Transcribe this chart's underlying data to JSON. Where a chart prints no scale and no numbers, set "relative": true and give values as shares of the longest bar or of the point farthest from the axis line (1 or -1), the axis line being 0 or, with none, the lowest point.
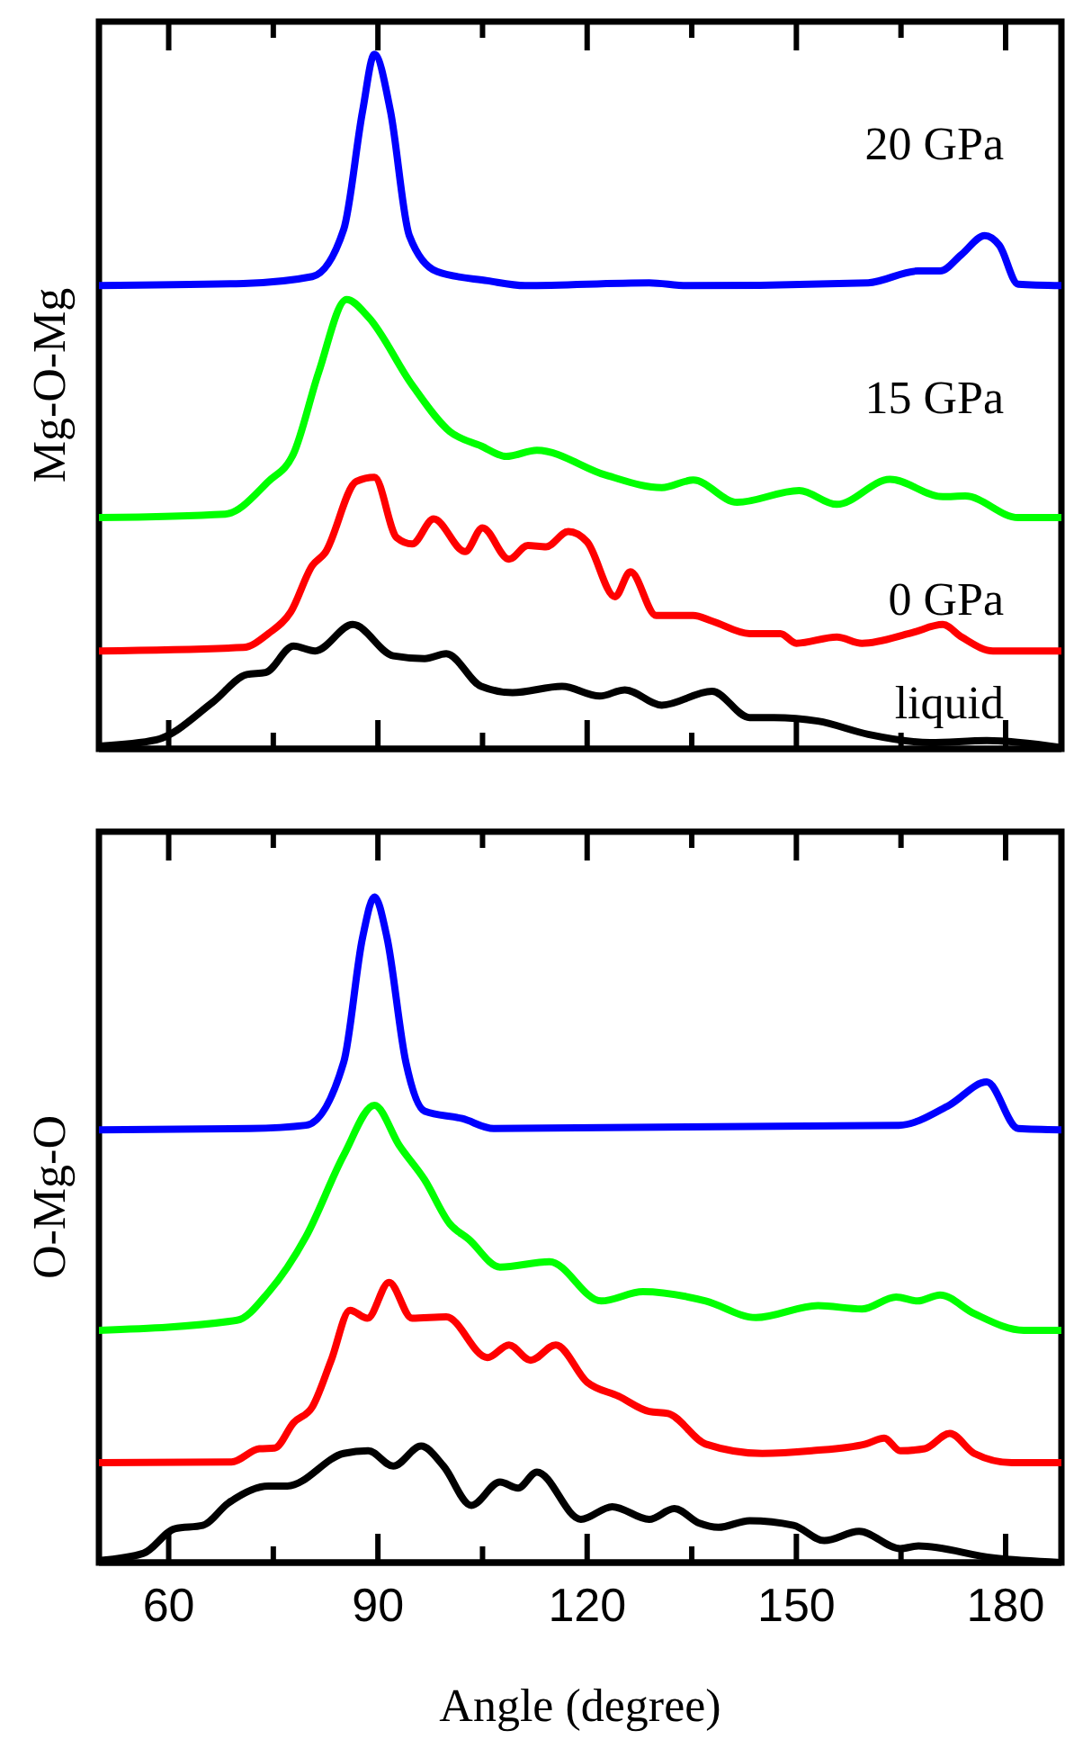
{
  "chart_data": [
    {
      "type": "line",
      "relative": true,
      "ylabel": "Mg-O-Mg",
      "xlim": [
        50,
        188
      ],
      "xticks": [
        60,
        {
          "value": 75,
          "label": null
        },
        90,
        {
          "value": 105,
          "label": null
        },
        120,
        {
          "value": 135,
          "label": null
        },
        150,
        {
          "value": 165,
          "label": null
        },
        180
      ],
      "tick_labels": false,
      "line_style": "solid",
      "series": [
        {
          "name": "20 GPa",
          "color": "#0000ff",
          "x": [
            50,
            70.7,
            80.6,
            85.1,
            87.8,
            89.5,
            91.8,
            94.5,
            98.5,
            105.7,
            111.1,
            128.9,
            134.3,
            160.3,
            167.4,
            170.6,
            173.7,
            177.0,
            179.1,
            181.8,
            188
          ],
          "values": [
            0.667,
            0.67,
            0.68,
            0.748,
            0.918,
            1.0,
            0.918,
            0.739,
            0.687,
            0.674,
            0.667,
            0.671,
            0.667,
            0.671,
            0.688,
            0.688,
            0.712,
            0.739,
            0.725,
            0.669,
            0.667
          ]
        },
        {
          "name": "15 GPa",
          "color": "#00ff00",
          "x": [
            50,
            68.1,
            74.3,
            77.9,
            81.5,
            85.5,
            88.6,
            94.9,
            100.3,
            104.8,
            108.4,
            112.8,
            122.7,
            130.7,
            135.2,
            141.5,
            150.4,
            155.8,
            163.4,
            171.0,
            174.2,
            181.8,
            188
          ],
          "values": [
            0.333,
            0.338,
            0.385,
            0.425,
            0.542,
            0.647,
            0.622,
            0.524,
            0.457,
            0.436,
            0.421,
            0.43,
            0.394,
            0.376,
            0.387,
            0.355,
            0.372,
            0.352,
            0.388,
            0.363,
            0.364,
            0.333,
            0.333
          ]
        },
        {
          "name": "0 GPa",
          "color": "#ff0000",
          "x": [
            50,
            70.7,
            74.3,
            77.5,
            80.6,
            82.4,
            86.9,
            89.5,
            92.7,
            94.9,
            98.0,
            102.5,
            105.0,
            108.8,
            111.5,
            114.1,
            117.3,
            120.0,
            124.0,
            126.2,
            129.9,
            135.2,
            137.9,
            143.3,
            147.7,
            150.0,
            155.8,
            159.4,
            166.5,
            171.0,
            173.7,
            178.2,
            188
          ],
          "values": [
            0.141,
            0.146,
            0.166,
            0.197,
            0.264,
            0.282,
            0.385,
            0.391,
            0.304,
            0.295,
            0.331,
            0.284,
            0.318,
            0.273,
            0.293,
            0.291,
            0.313,
            0.298,
            0.219,
            0.255,
            0.192,
            0.192,
            0.184,
            0.166,
            0.166,
            0.152,
            0.161,
            0.152,
            0.167,
            0.179,
            0.161,
            0.141,
            0.141
          ]
        },
        {
          "name": "liquid",
          "color": "#000000",
          "x": [
            50,
            58.2,
            66.3,
            71.2,
            73.9,
            77.9,
            81.0,
            86.4,
            92.2,
            96.7,
            99.8,
            104.8,
            109.3,
            116.4,
            121.8,
            125.4,
            130.7,
            137.9,
            143.3,
            146.8,
            153.1,
            160.3,
            169.2,
            177.3,
            188
          ],
          "values": [
            0.004,
            0.013,
            0.067,
            0.107,
            0.11,
            0.148,
            0.141,
            0.179,
            0.134,
            0.13,
            0.137,
            0.09,
            0.081,
            0.09,
            0.076,
            0.085,
            0.063,
            0.083,
            0.045,
            0.045,
            0.04,
            0.021,
            0.009,
            0.012,
            0.002
          ]
        }
      ]
    },
    {
      "type": "line",
      "relative": true,
      "ylabel": "O-Mg-O",
      "xlabel": "Angle (degree)",
      "xlim": [
        50,
        188
      ],
      "xticks": [
        60,
        {
          "value": 75,
          "label": null
        },
        90,
        {
          "value": 105,
          "label": null
        },
        120,
        {
          "value": 135,
          "label": null
        },
        150,
        {
          "value": 165,
          "label": null
        },
        180
      ],
      "tick_labels": "x",
      "line_style": "solid",
      "series": [
        {
          "color": "#0000ff",
          "x": [
            50,
            71.6,
            79.7,
            85.1,
            87.8,
            89.5,
            91.3,
            94.0,
            96.7,
            102.1,
            106.6,
            164.7,
            171.9,
            177.3,
            181.8,
            188
          ],
          "values": [
            0.65,
            0.652,
            0.657,
            0.752,
            0.939,
            1.0,
            0.939,
            0.752,
            0.678,
            0.667,
            0.652,
            0.657,
            0.687,
            0.722,
            0.652,
            0.65
          ]
        },
        {
          "color": "#00ff00",
          "x": [
            50,
            69.8,
            74.3,
            79.7,
            85.1,
            89.5,
            93.1,
            96.7,
            100.3,
            103.0,
            107.5,
            114.6,
            122.0,
            128.0,
            137.0,
            144.2,
            153.1,
            159.4,
            164.3,
            167.4,
            170.6,
            175.5,
            182.6,
            188
          ],
          "values": [
            0.349,
            0.364,
            0.406,
            0.49,
            0.612,
            0.687,
            0.626,
            0.575,
            0.509,
            0.486,
            0.444,
            0.452,
            0.393,
            0.407,
            0.393,
            0.368,
            0.386,
            0.381,
            0.399,
            0.393,
            0.402,
            0.374,
            0.349,
            0.349
          ]
        },
        {
          "color": "#ff0000",
          "x": [
            50,
            69.0,
            73.0,
            75.2,
            77.9,
            80.6,
            83.3,
            86.0,
            88.5,
            91.6,
            94.9,
            99.8,
            105.7,
            108.8,
            111.9,
            115.5,
            120.0,
            124.5,
            128.9,
            131.6,
            137.0,
            145.1,
            152.2,
            159.9,
            162.6,
            164.9,
            168.4,
            172.0,
            175.5,
            180.9,
            188
          ],
          "values": [
            0.15,
            0.151,
            0.171,
            0.172,
            0.21,
            0.234,
            0.304,
            0.379,
            0.367,
            0.421,
            0.367,
            0.369,
            0.308,
            0.327,
            0.304,
            0.327,
            0.271,
            0.25,
            0.227,
            0.224,
            0.178,
            0.164,
            0.168,
            0.178,
            0.187,
            0.168,
            0.171,
            0.194,
            0.164,
            0.15,
            0.15
          ]
        },
        {
          "color": "#000000",
          "x": [
            50,
            56.4,
            60.9,
            64.9,
            68.5,
            74.3,
            77.0,
            85.1,
            88.6,
            92.2,
            96.2,
            99.4,
            103.4,
            107.5,
            110.1,
            112.8,
            119.1,
            123.6,
            128.9,
            132.5,
            136.1,
            138.8,
            143.3,
            149.6,
            154.0,
            159.0,
            164.9,
            167.5,
            178.2,
            188
          ],
          "values": [
            0.003,
            0.014,
            0.051,
            0.056,
            0.089,
            0.115,
            0.115,
            0.164,
            0.168,
            0.145,
            0.175,
            0.145,
            0.086,
            0.121,
            0.112,
            0.136,
            0.065,
            0.084,
            0.065,
            0.081,
            0.059,
            0.053,
            0.063,
            0.056,
            0.033,
            0.047,
            0.021,
            0.025,
            0.007,
            0.0
          ]
        }
      ]
    }
  ]
}
